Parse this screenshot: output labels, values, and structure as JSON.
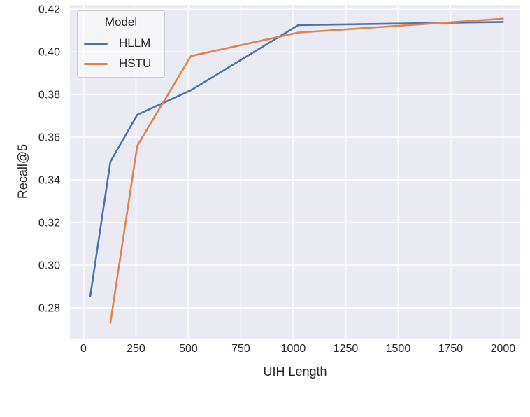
{
  "chart_data": {
    "type": "line",
    "title": "",
    "xlabel": "UIH Length",
    "ylabel": "Recall@5",
    "xlim": [
      -65,
      2082
    ],
    "ylim": [
      0.2654,
      0.422
    ],
    "grid": true,
    "legend": {
      "title": "Model",
      "position": "upper-left"
    },
    "x_ticks": {
      "values": [
        0,
        250,
        500,
        750,
        1000,
        1250,
        1500,
        1750,
        2000
      ],
      "labels": [
        "0",
        "250",
        "500",
        "750",
        "1000",
        "1250",
        "1500",
        "1750",
        "2000"
      ]
    },
    "y_ticks": {
      "values": [
        0.28,
        0.3,
        0.32,
        0.34,
        0.36,
        0.38,
        0.4,
        0.42
      ],
      "labels": [
        "0.28",
        "0.30",
        "0.32",
        "0.34",
        "0.36",
        "0.38",
        "0.40",
        "0.42"
      ]
    },
    "series": [
      {
        "name": "HLLM",
        "color": "#4C72B0",
        "points": [
          [
            32,
            0.2855
          ],
          [
            128,
            0.3485
          ],
          [
            256,
            0.3705
          ],
          [
            512,
            0.382
          ],
          [
            1024,
            0.4125
          ],
          [
            2000,
            0.414
          ]
        ]
      },
      {
        "name": "HSTU",
        "color": "#DD8452",
        "points": [
          [
            128,
            0.273
          ],
          [
            256,
            0.356
          ],
          [
            512,
            0.398
          ],
          [
            1024,
            0.409
          ],
          [
            2000,
            0.4155
          ]
        ]
      }
    ],
    "style": {
      "plot_bg": "#EAEAF2",
      "grid_color": "#FFFFFF",
      "text_color": "#262626",
      "line_width": 2.6
    }
  }
}
